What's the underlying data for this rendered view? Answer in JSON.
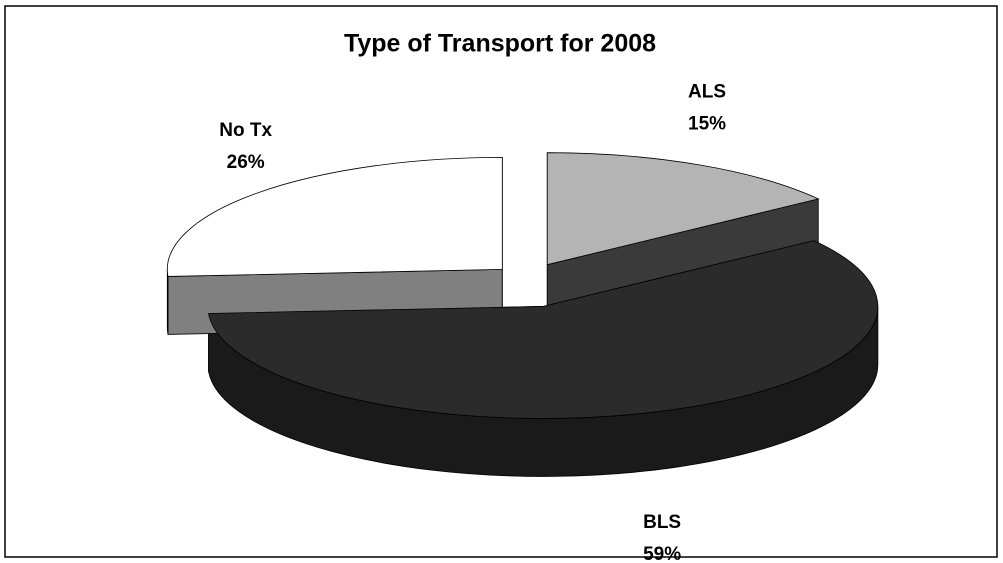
{
  "chart_data": {
    "type": "pie3d",
    "title": "Type of Transport for 2008",
    "categories": [
      "ALS",
      "BLS",
      "No Tx"
    ],
    "values": [
      15,
      59,
      26
    ],
    "value_labels": [
      "15%",
      "59%",
      "26%"
    ],
    "colors": [
      "#b4b4b4",
      "#2b2b2b",
      "#ffffff"
    ],
    "side_colors": [
      "#3a3a3a",
      "#1a1a1a",
      "#808080"
    ]
  }
}
